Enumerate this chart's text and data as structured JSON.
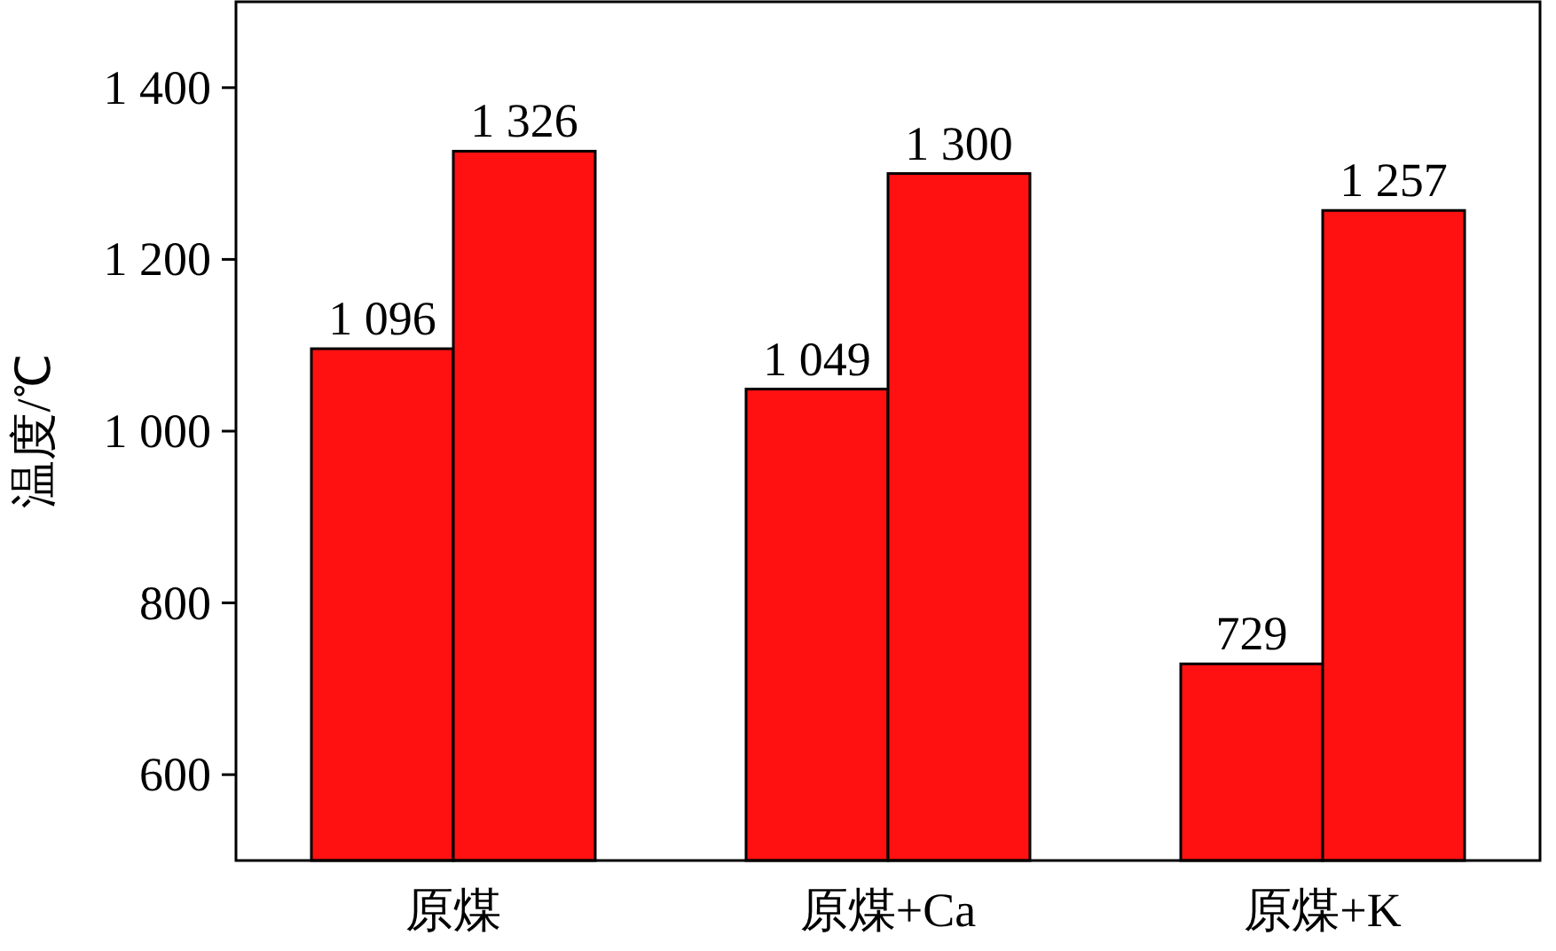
{
  "chart_data": {
    "type": "bar",
    "ylabel": "温度/℃",
    "categories": [
      "原煤",
      "原煤+Ca",
      "原煤+K"
    ],
    "series": [
      {
        "color": "#ff1111",
        "values": [
          1096,
          1049,
          729
        ],
        "value_labels": [
          "1 096",
          "1 049",
          "729"
        ]
      },
      {
        "color": "#ff1111",
        "values": [
          1326,
          1300,
          1257
        ],
        "value_labels": [
          "1 326",
          "1 300",
          "1 257"
        ]
      }
    ],
    "ylim": [
      500,
      1500
    ],
    "yticks": [
      {
        "value": 600,
        "label": "600"
      },
      {
        "value": 800,
        "label": "800"
      },
      {
        "value": 1000,
        "label": "1 000"
      },
      {
        "value": 1200,
        "label": "1 200"
      },
      {
        "value": 1400,
        "label": "1 400"
      }
    ],
    "grid": false
  }
}
